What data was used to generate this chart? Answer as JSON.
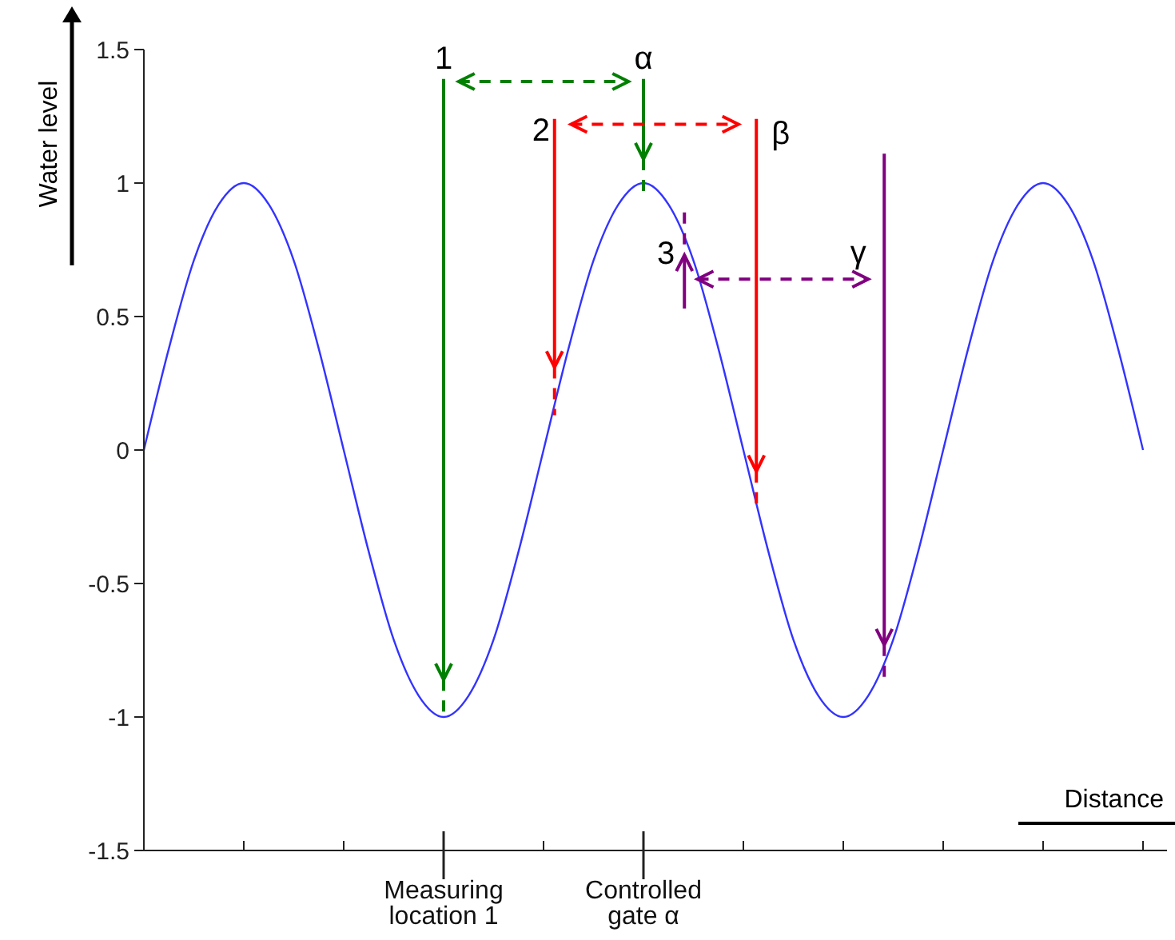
{
  "chart_data": {
    "type": "line",
    "xlabel": "Distance",
    "ylabel": "Water level",
    "categories": [
      null,
      null,
      null,
      null,
      null,
      null,
      null,
      null,
      null,
      null,
      null,
      null,
      "Measuring location 1",
      null,
      null,
      null,
      null,
      null,
      null,
      null,
      "Controlled gate α",
      null,
      null,
      null,
      null,
      null,
      null,
      null,
      null,
      null,
      null,
      null,
      null,
      null,
      null,
      null,
      null,
      null,
      null,
      null,
      null
    ],
    "series": [
      {
        "color": "#3333ff",
        "values": [
          0,
          0.38,
          0.71,
          0.92,
          1,
          0.92,
          0.71,
          0.38,
          0,
          -0.38,
          -0.71,
          -0.92,
          -1,
          -0.92,
          -0.71,
          -0.38,
          0,
          0.38,
          0.71,
          0.92,
          1,
          0.92,
          0.71,
          0.38,
          0,
          -0.38,
          -0.71,
          -0.92,
          -1,
          -0.92,
          -0.71,
          -0.38,
          0,
          0.38,
          0.71,
          0.92,
          1,
          0.92,
          0.71,
          0.38,
          0
        ]
      }
    ],
    "ylim": [
      -1.5,
      1.5
    ],
    "yticks": [
      -1.5,
      -1,
      -0.5,
      0,
      0.5,
      1,
      1.5
    ],
    "annotations": [
      "1",
      "α",
      "2",
      "β",
      "3",
      {
        "text": "γ",
        "y": 0.64
      }
    ]
  }
}
